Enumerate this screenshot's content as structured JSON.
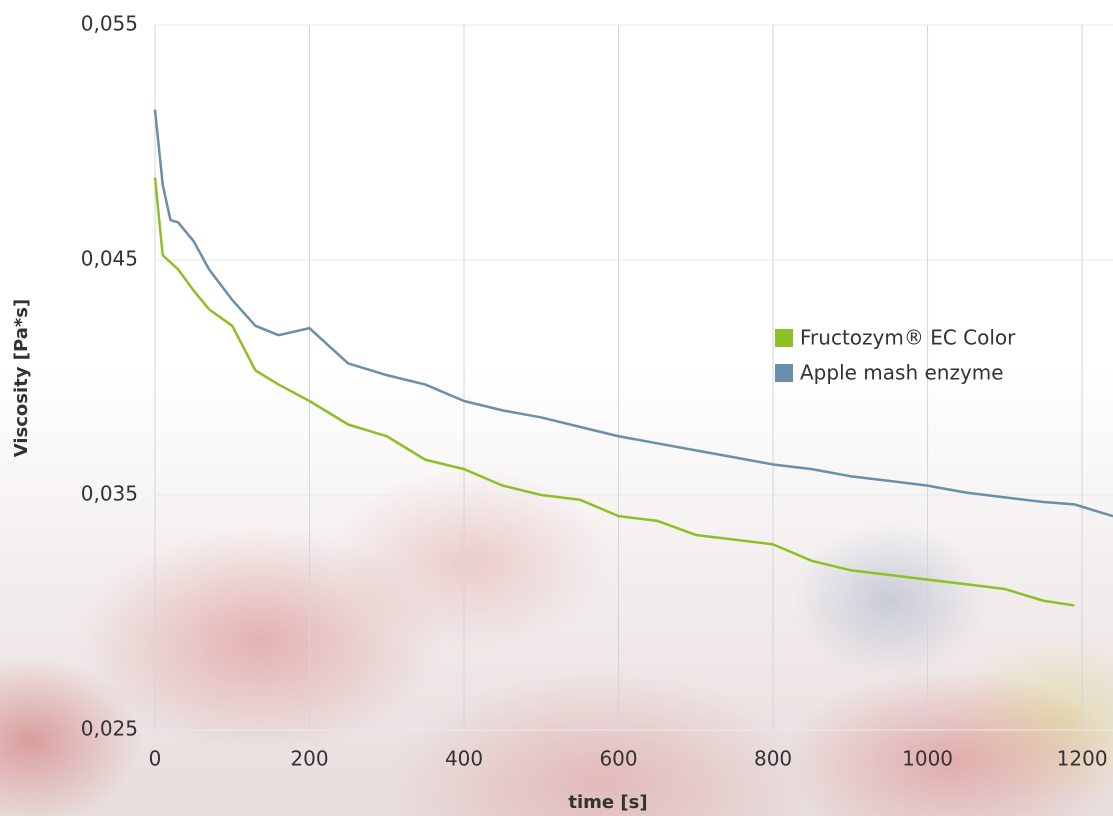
{
  "chart_data": {
    "type": "line",
    "x_label": "time [s]",
    "y_label": "Viscosity [Pa*s]",
    "x": [
      0,
      10,
      20,
      30,
      50,
      70,
      100,
      130,
      160,
      200,
      250,
      300,
      350,
      400,
      450,
      500,
      550,
      600,
      650,
      700,
      750,
      800,
      850,
      900,
      950,
      1000,
      1050,
      1100,
      1150,
      1190,
      1200,
      1240
    ],
    "series": [
      {
        "name": "Fructozym® EC Color",
        "color": "#8dbf27",
        "values": [
          0.0485,
          0.0452,
          0.0449,
          0.0446,
          0.0437,
          0.0429,
          0.0422,
          0.0403,
          0.0397,
          0.039,
          0.038,
          0.0375,
          0.0365,
          0.0361,
          0.0354,
          0.035,
          0.0348,
          0.0341,
          0.0339,
          0.0333,
          0.0331,
          0.0329,
          0.0322,
          0.0318,
          0.0316,
          0.0314,
          0.0312,
          0.031,
          0.0305,
          0.0303,
          null,
          null
        ]
      },
      {
        "name": "Apple mash enzyme",
        "color": "#6a8fa8",
        "values": [
          0.0514,
          0.0482,
          0.0467,
          0.0466,
          0.0458,
          0.0446,
          0.0433,
          0.0422,
          0.0418,
          0.0421,
          0.0406,
          0.0401,
          0.0397,
          0.039,
          0.0386,
          0.0383,
          0.0379,
          0.0375,
          0.0372,
          0.0369,
          0.0366,
          0.0363,
          0.0361,
          0.0358,
          0.0356,
          0.0354,
          0.0351,
          0.0349,
          0.0347,
          0.0346,
          0.0345,
          0.0341
        ]
      }
    ],
    "xlim": [
      0,
      1240
    ],
    "xticks": [
      0,
      200,
      400,
      600,
      800,
      1000,
      1200
    ],
    "ylim": [
      0.025,
      0.055
    ],
    "yticks": [
      {
        "value": 0.025,
        "label": "0,025"
      },
      {
        "value": 0.035,
        "label": "0,035"
      },
      {
        "value": 0.045,
        "label": "0,045"
      },
      {
        "value": 0.055,
        "label": "0,055"
      }
    ],
    "grid": true
  }
}
